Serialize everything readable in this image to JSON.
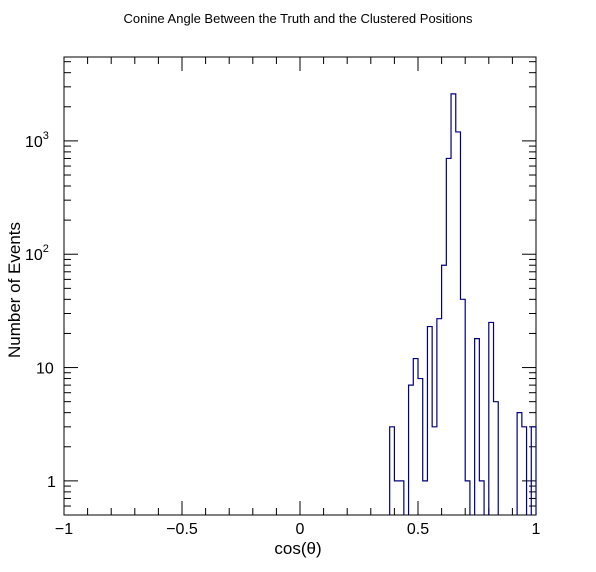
{
  "chart_data": {
    "type": "bar",
    "title": "Conine Angle Between the Truth and the Clustered Positions",
    "xlabel": "cos(θ)",
    "ylabel": "Number of Events",
    "xlim": [
      -1,
      1
    ],
    "ylim": [
      0.5,
      5500
    ],
    "y_scale": "log",
    "grid": false,
    "legend": "none",
    "line_color": "#000080",
    "x_ticks": [
      {
        "value": -1,
        "label": "−1"
      },
      {
        "value": -0.5,
        "label": "−0.5"
      },
      {
        "value": 0,
        "label": "0"
      },
      {
        "value": 0.5,
        "label": "0.5"
      },
      {
        "value": 1,
        "label": "1"
      }
    ],
    "y_ticks": [
      {
        "value": 1,
        "base": "1",
        "exp": ""
      },
      {
        "value": 10,
        "base": "10",
        "exp": ""
      },
      {
        "value": 100,
        "base": "10",
        "exp": "2"
      },
      {
        "value": 1000,
        "base": "10",
        "exp": "3"
      }
    ],
    "bin_width": 0.02,
    "bins": [
      {
        "x": 0.38,
        "count": 3
      },
      {
        "x": 0.4,
        "count": 1
      },
      {
        "x": 0.42,
        "count": 1
      },
      {
        "x": 0.46,
        "count": 7
      },
      {
        "x": 0.48,
        "count": 12
      },
      {
        "x": 0.5,
        "count": 8
      },
      {
        "x": 0.52,
        "count": 1
      },
      {
        "x": 0.54,
        "count": 23
      },
      {
        "x": 0.56,
        "count": 3
      },
      {
        "x": 0.58,
        "count": 27
      },
      {
        "x": 0.6,
        "count": 80
      },
      {
        "x": 0.62,
        "count": 700
      },
      {
        "x": 0.64,
        "count": 2600
      },
      {
        "x": 0.66,
        "count": 1200
      },
      {
        "x": 0.68,
        "count": 40
      },
      {
        "x": 0.7,
        "count": 1
      },
      {
        "x": 0.74,
        "count": 18
      },
      {
        "x": 0.76,
        "count": 1
      },
      {
        "x": 0.8,
        "count": 25
      },
      {
        "x": 0.82,
        "count": 5
      },
      {
        "x": 0.92,
        "count": 4
      },
      {
        "x": 0.94,
        "count": 3
      },
      {
        "x": 0.98,
        "count": 3
      }
    ]
  }
}
